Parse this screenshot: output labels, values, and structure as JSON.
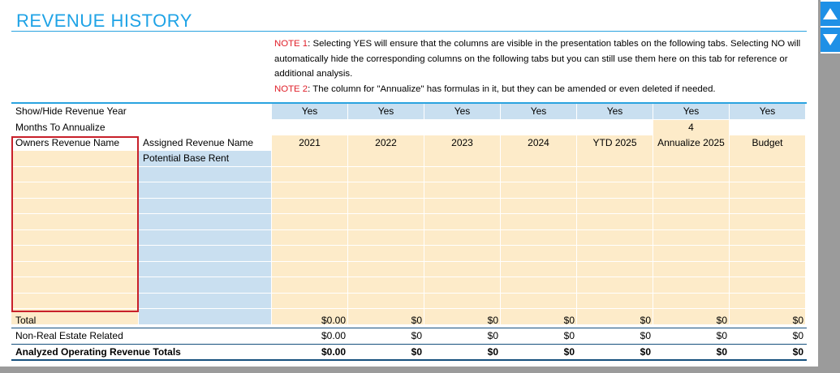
{
  "title": "REVENUE HISTORY",
  "notes": {
    "note1_label": "NOTE 1",
    "note1_text": ": Selecting YES will ensure that the columns are visible in the presentation tables on the following tabs. Selecting NO will automatically hide the corresponding columns on the following tabs but you can still use them here on this tab for reference or additional analysis.",
    "note2_label": "NOTE 2",
    "note2_text": ": The column for \"Annualize\" has formulas in it, but they can be amended or even deleted if needed."
  },
  "rows": {
    "show_hide_label": "Show/Hide Revenue Year",
    "show_hide_values": [
      "Yes",
      "Yes",
      "Yes",
      "Yes",
      "Yes",
      "Yes",
      "Yes"
    ],
    "months_label": "Months To Annualize",
    "months_value": "4",
    "owners_revenue_header": "Owners Revenue Name",
    "assigned_revenue_header": "Assigned Revenue Name",
    "column_headers": [
      "2021",
      "2022",
      "2023",
      "2024",
      "YTD 2025",
      "Annualize 2025",
      "Budget"
    ],
    "first_assigned_name": "Potential Base Rent"
  },
  "totals": [
    {
      "label": "Total",
      "values": [
        "$0.00",
        "$0",
        "$0",
        "$0",
        "$0",
        "$0",
        "$0"
      ],
      "bold": false
    },
    {
      "label": "Non-Real Estate Related",
      "values": [
        "$0.00",
        "$0",
        "$0",
        "$0",
        "$0",
        "$0",
        "$0"
      ],
      "bold": false
    },
    {
      "label": "Analyzed Operating Revenue Totals",
      "values": [
        "$0.00",
        "$0",
        "$0",
        "$0",
        "$0",
        "$0",
        "$0"
      ],
      "bold": true
    }
  ],
  "icons": {
    "scroll_up": "arrow-up-icon",
    "scroll_down": "arrow-down-icon"
  },
  "colors": {
    "title_blue": "#1fa3e6",
    "note_red": "#e0202a",
    "input_blue": "#c9dff0",
    "input_peach": "#fdebc9",
    "highlight_red": "#c8202a"
  }
}
